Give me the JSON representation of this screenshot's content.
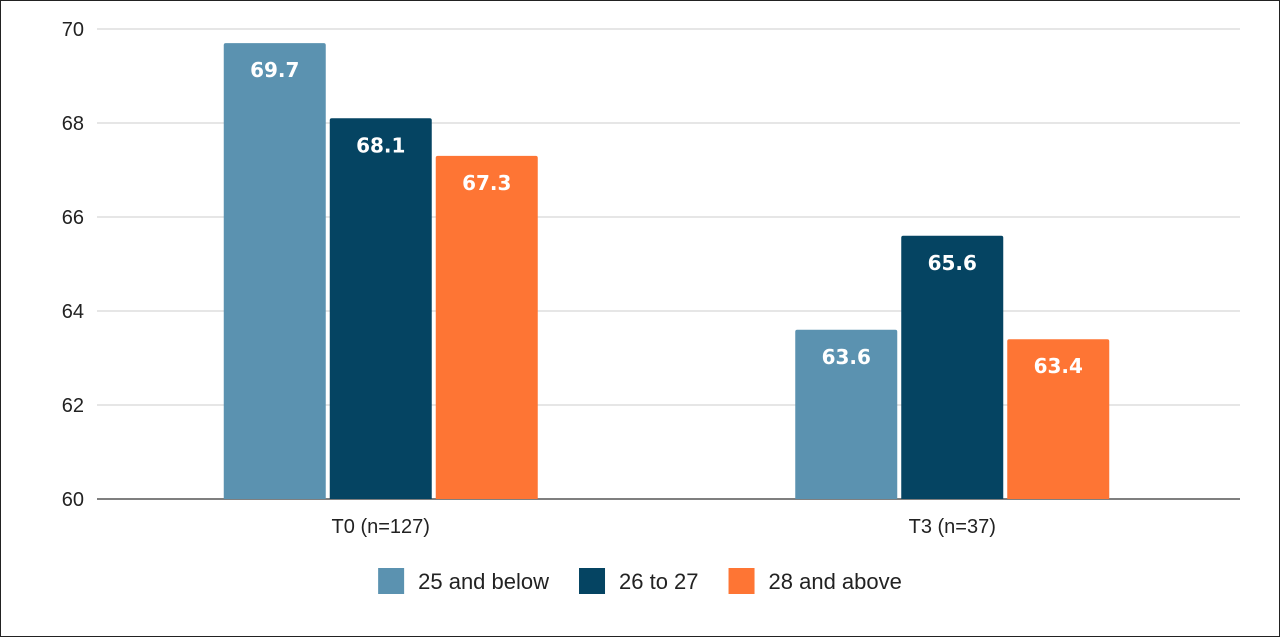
{
  "chart_data": {
    "type": "bar",
    "categories": [
      "T0 (n=127)",
      "T3 (n=37)"
    ],
    "series": [
      {
        "name": "25 and below",
        "color": "#5b92b0",
        "values": [
          69.7,
          63.6
        ]
      },
      {
        "name": "26 to 27",
        "color": "#054462",
        "values": [
          68.1,
          65.6
        ]
      },
      {
        "name": "28 and above",
        "color": "#fe7534",
        "values": [
          67.3,
          63.4
        ]
      }
    ],
    "ylim": [
      60,
      70
    ],
    "yticks": [
      60,
      62,
      64,
      66,
      68,
      70
    ],
    "grid": true,
    "legend": "bottom",
    "data_labels": true
  }
}
